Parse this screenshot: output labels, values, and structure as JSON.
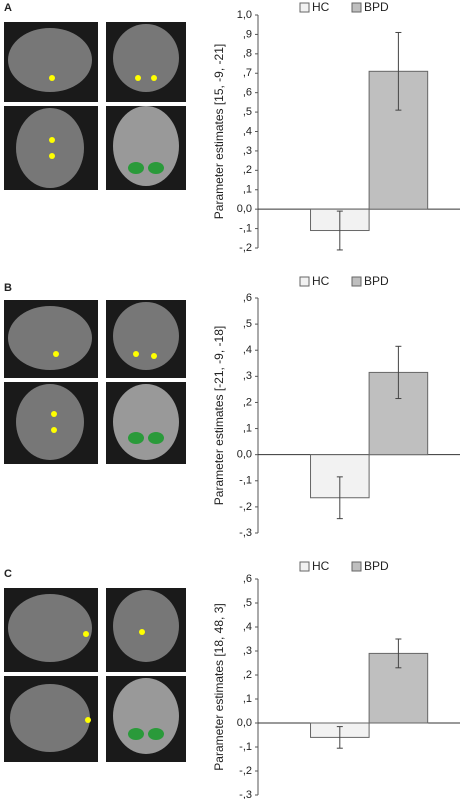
{
  "chart_data": [
    {
      "panel": "A",
      "type": "bar",
      "ylabel": "Parameter estimates [15, -9, -21]",
      "series": [
        {
          "name": "HC",
          "color": "#f2f2f2",
          "values": [
            -0.11
          ],
          "errors": [
            0.1
          ]
        },
        {
          "name": "BPD",
          "color": "#bfbfbf",
          "values": [
            0.71
          ],
          "errors": [
            0.2
          ]
        }
      ],
      "ylim": [
        -0.2,
        1.0
      ],
      "yticks": [
        {
          "value": -0.2,
          "label": "-,2"
        },
        {
          "value": -0.1,
          "label": "-,1"
        },
        {
          "value": 0,
          "label": "0,0"
        },
        {
          "value": 0.1,
          "label": ",1"
        },
        {
          "value": 0.2,
          "label": ",2"
        },
        {
          "value": 0.3,
          "label": ",3"
        },
        {
          "value": 0.4,
          "label": ",4"
        },
        {
          "value": 0.5,
          "label": ",5"
        },
        {
          "value": 0.6,
          "label": ",6"
        },
        {
          "value": 0.7,
          "label": ",7"
        },
        {
          "value": 0.8,
          "label": ",8"
        },
        {
          "value": 0.9,
          "label": ",9"
        },
        {
          "value": 1.0,
          "label": "1,0"
        }
      ]
    },
    {
      "panel": "B",
      "type": "bar",
      "ylabel": "Parameter estimates [-21, -9, -18]",
      "series": [
        {
          "name": "HC",
          "color": "#f2f2f2",
          "values": [
            -0.165
          ],
          "errors": [
            0.08
          ]
        },
        {
          "name": "BPD",
          "color": "#bfbfbf",
          "values": [
            0.315
          ],
          "errors": [
            0.1
          ]
        }
      ],
      "ylim": [
        -0.3,
        0.6
      ],
      "yticks": [
        {
          "value": -0.3,
          "label": "-,3"
        },
        {
          "value": -0.2,
          "label": "-,2"
        },
        {
          "value": -0.1,
          "label": "-,1"
        },
        {
          "value": 0,
          "label": "0,0"
        },
        {
          "value": 0.1,
          "label": ",1"
        },
        {
          "value": 0.2,
          "label": ",2"
        },
        {
          "value": 0.3,
          "label": ",3"
        },
        {
          "value": 0.4,
          "label": ",4"
        },
        {
          "value": 0.5,
          "label": ",5"
        },
        {
          "value": 0.6,
          "label": ",6"
        }
      ]
    },
    {
      "panel": "C",
      "type": "bar",
      "ylabel": "Parameter estimates [18, 48, 3]",
      "series": [
        {
          "name": "HC",
          "color": "#f2f2f2",
          "values": [
            -0.06
          ],
          "errors": [
            0.045
          ]
        },
        {
          "name": "BPD",
          "color": "#bfbfbf",
          "values": [
            0.29
          ],
          "errors": [
            0.06
          ]
        }
      ],
      "ylim": [
        -0.3,
        0.6
      ],
      "yticks": [
        {
          "value": -0.3,
          "label": "-,3"
        },
        {
          "value": -0.2,
          "label": "-,2"
        },
        {
          "value": -0.1,
          "label": "-,1"
        },
        {
          "value": 0,
          "label": "0,0"
        },
        {
          "value": 0.1,
          "label": ",1"
        },
        {
          "value": 0.2,
          "label": ",2"
        },
        {
          "value": 0.3,
          "label": ",3"
        },
        {
          "value": 0.4,
          "label": ",4"
        },
        {
          "value": 0.5,
          "label": ",5"
        },
        {
          "value": 0.6,
          "label": ",6"
        }
      ]
    }
  ]
}
